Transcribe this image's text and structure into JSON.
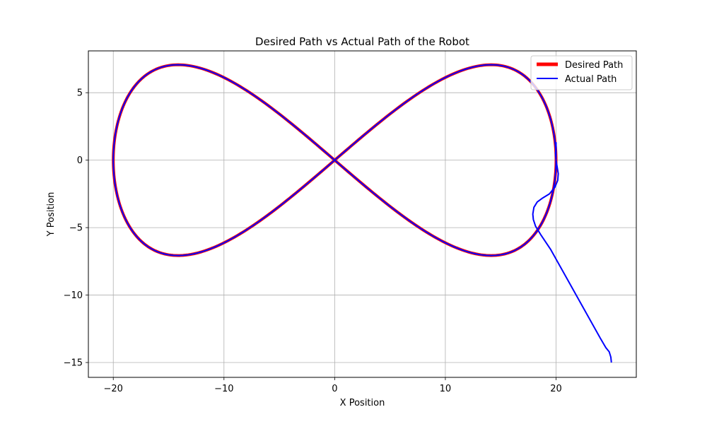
{
  "chart_data": {
    "type": "line",
    "title": "Desired Path vs Actual Path of the Robot",
    "xlabel": "X Position",
    "ylabel": "Y Position",
    "xlim": [
      -22.25,
      27.25
    ],
    "ylim": [
      -16.1,
      8.1
    ],
    "xticks": [
      -20,
      -10,
      0,
      10,
      20
    ],
    "xtick_labels": [
      "−20",
      "−10",
      "0",
      "10",
      "20"
    ],
    "yticks": [
      5,
      0,
      -5,
      -10,
      -15
    ],
    "ytick_labels": [
      "5",
      "0",
      "−5",
      "−10",
      "−15"
    ],
    "grid": true,
    "legend_position": "top-right",
    "series": [
      {
        "name": "Desired Path",
        "color": "#ff0000",
        "curve": "figure-eight: x = 20·sin(t), y = 7.07·sin(2t), t ∈ [0, 2π]",
        "x": [
          0,
          7.654,
          14.142,
          18.478,
          20,
          18.478,
          14.142,
          7.654,
          0,
          -7.654,
          -14.142,
          -18.478,
          -20,
          -18.478,
          -14.142,
          -7.654,
          0
        ],
        "y": [
          0,
          5.0,
          7.071,
          5.0,
          0,
          -5.0,
          -7.071,
          -5.0,
          0,
          5.0,
          7.071,
          5.0,
          0,
          -5.0,
          -7.071,
          -5.0,
          0
        ]
      },
      {
        "name": "Actual Path",
        "color": "#0000ff",
        "x": [
          25.0,
          24.95,
          24.8,
          24.5,
          24.0,
          22.5,
          21.0,
          19.5,
          18.6,
          18.15,
          17.95,
          17.9,
          18.0,
          18.3,
          18.8,
          19.4,
          19.9,
          20.15,
          20.2,
          20.1,
          20.0,
          19.95,
          20.0,
          20.0
        ],
        "y": [
          -15.0,
          -14.6,
          -14.2,
          -13.9,
          -13.2,
          -11.0,
          -8.8,
          -6.6,
          -5.5,
          -4.9,
          -4.4,
          -4.0,
          -3.5,
          -3.1,
          -2.8,
          -2.5,
          -2.0,
          -1.5,
          -1.0,
          -0.5,
          0.0,
          0.5,
          1.0,
          1.3
        ]
      }
    ]
  }
}
